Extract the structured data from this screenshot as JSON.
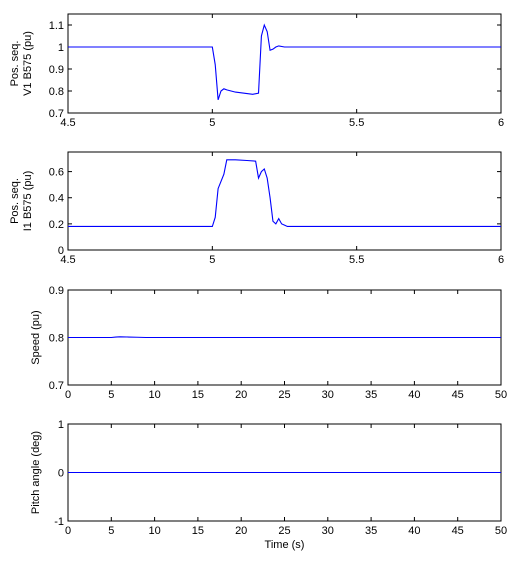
{
  "colors": {
    "series": "#0000ff",
    "axes": "#000000",
    "background": "#ffffff"
  },
  "chart_data": [
    {
      "type": "line",
      "ylabel": [
        "Pos. seq.",
        "V1 B575 (pu)"
      ],
      "xlabel": "",
      "xlim": [
        4.5,
        6
      ],
      "ylim": [
        0.7,
        1.15
      ],
      "xticks": [
        4.5,
        5,
        5.5,
        6
      ],
      "xtick_labels": [
        "4.5",
        "5",
        "5.5",
        "6"
      ],
      "yticks": [
        0.7,
        0.8,
        0.9,
        1.0,
        1.1
      ],
      "ytick_labels": [
        "0.7",
        "0.8",
        "0.9",
        "1",
        "1.1"
      ],
      "grid": false,
      "x": [
        4.5,
        5.0,
        5.01,
        5.02,
        5.03,
        5.04,
        5.05,
        5.08,
        5.11,
        5.14,
        5.16,
        5.17,
        5.18,
        5.19,
        5.2,
        5.21,
        5.22,
        5.23,
        5.25,
        5.3,
        6.0
      ],
      "y": [
        1.0,
        1.0,
        0.92,
        0.76,
        0.8,
        0.81,
        0.805,
        0.795,
        0.79,
        0.785,
        0.79,
        1.05,
        1.1,
        1.07,
        0.985,
        0.99,
        1.0,
        1.005,
        1.0,
        1.0,
        1.0
      ]
    },
    {
      "type": "line",
      "ylabel": [
        "Pos. seq.",
        "I1 B575 (pu)"
      ],
      "xlabel": "",
      "xlim": [
        4.5,
        6
      ],
      "ylim": [
        0,
        0.75
      ],
      "xticks": [
        4.5,
        5,
        5.5,
        6
      ],
      "xtick_labels": [
        "4.5",
        "5",
        "5.5",
        "6"
      ],
      "yticks": [
        0,
        0.2,
        0.4,
        0.6
      ],
      "ytick_labels": [
        "0",
        "0.2",
        "0.4",
        "0.6"
      ],
      "grid": false,
      "x": [
        4.5,
        5.0,
        5.01,
        5.02,
        5.04,
        5.05,
        5.08,
        5.12,
        5.15,
        5.16,
        5.17,
        5.18,
        5.19,
        5.2,
        5.21,
        5.22,
        5.23,
        5.24,
        5.25,
        5.26,
        5.3,
        6.0
      ],
      "y": [
        0.18,
        0.18,
        0.25,
        0.47,
        0.58,
        0.69,
        0.69,
        0.685,
        0.68,
        0.55,
        0.6,
        0.62,
        0.55,
        0.4,
        0.22,
        0.2,
        0.24,
        0.2,
        0.19,
        0.18,
        0.18,
        0.18
      ]
    },
    {
      "type": "line",
      "ylabel": [
        "Speed (pu)"
      ],
      "xlabel": "",
      "xlim": [
        0,
        50
      ],
      "ylim": [
        0.7,
        0.9
      ],
      "xticks": [
        0,
        5,
        10,
        15,
        20,
        25,
        30,
        35,
        40,
        45,
        50
      ],
      "xtick_labels": [
        "0",
        "5",
        "10",
        "15",
        "20",
        "25",
        "30",
        "35",
        "40",
        "45",
        "50"
      ],
      "yticks": [
        0.7,
        0.8,
        0.9
      ],
      "ytick_labels": [
        "0.7",
        "0.8",
        "0.9"
      ],
      "grid": false,
      "x": [
        0,
        5,
        5.5,
        6,
        7,
        8,
        9,
        10,
        50
      ],
      "y": [
        0.8,
        0.8,
        0.801,
        0.8015,
        0.801,
        0.8005,
        0.8,
        0.8,
        0.8
      ]
    },
    {
      "type": "line",
      "ylabel": [
        "Pitch angle (deg)"
      ],
      "xlabel": "Time (s)",
      "xlim": [
        0,
        50
      ],
      "ylim": [
        -1,
        1
      ],
      "xticks": [
        0,
        5,
        10,
        15,
        20,
        25,
        30,
        35,
        40,
        45,
        50
      ],
      "xtick_labels": [
        "0",
        "5",
        "10",
        "15",
        "20",
        "25",
        "30",
        "35",
        "40",
        "45",
        "50"
      ],
      "yticks": [
        -1,
        0,
        1
      ],
      "ytick_labels": [
        "-1",
        "0",
        "1"
      ],
      "grid": false,
      "x": [
        0,
        50
      ],
      "y": [
        0,
        0
      ]
    }
  ]
}
